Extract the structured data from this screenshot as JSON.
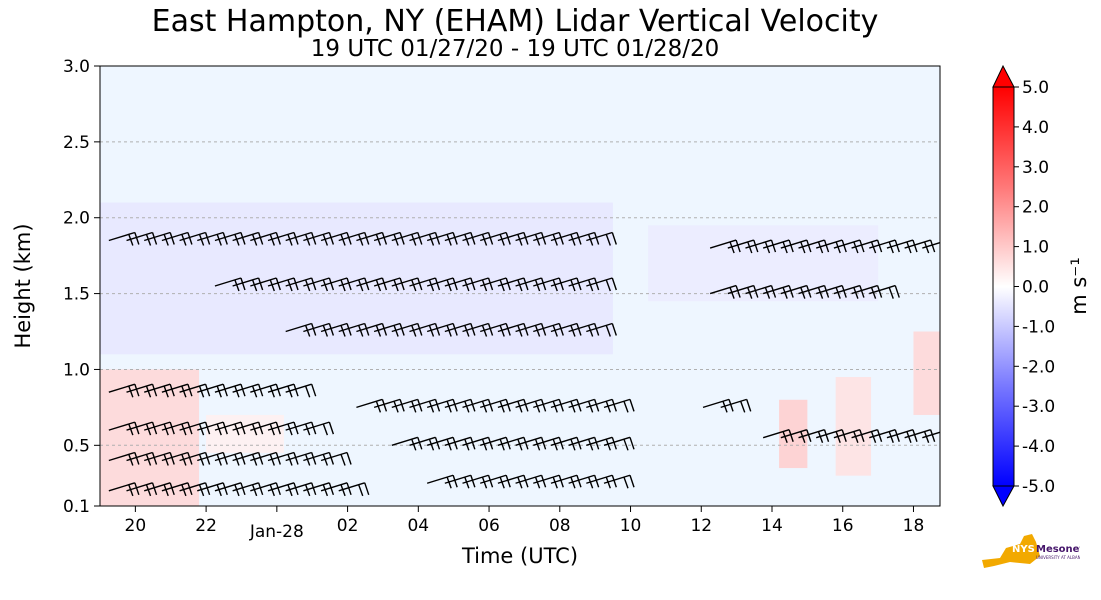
{
  "chart_data": {
    "type": "heatmap",
    "title": "East Hampton, NY (EHAM) Lidar Vertical Velocity",
    "subtitle": "19 UTC 01/27/20 - 19 UTC 01/28/20",
    "xlabel": "Time (UTC)",
    "ylabel": "Height (km)",
    "x_ticks": [
      "20",
      "22",
      "Jan-28",
      "02",
      "04",
      "06",
      "08",
      "10",
      "12",
      "14",
      "16",
      "18"
    ],
    "x_tick_hours": [
      20,
      22,
      24,
      26,
      28,
      30,
      32,
      34,
      36,
      38,
      40,
      42
    ],
    "xlim": [
      19,
      42.75
    ],
    "y_ticks": [
      0.1,
      0.5,
      1.0,
      1.5,
      2.0,
      2.5,
      3.0
    ],
    "y_tick_labels": [
      "0.1",
      "0.5",
      "1.0",
      "1.5",
      "2.0",
      "2.5",
      "3.0"
    ],
    "ylim": [
      0.1,
      3.0
    ],
    "grid": "horizontal dashed at 0.5 km intervals",
    "colorbar": {
      "label": "m s⁻¹",
      "range": [
        -5.0,
        5.0
      ],
      "tick_labels": [
        "5.0",
        "4.0",
        "3.0",
        "2.0",
        "1.0",
        "0.0",
        "-1.0",
        "-2.0",
        "-3.0",
        "-4.0",
        "-5.0"
      ],
      "colors": {
        "min": "#0000ff",
        "mid": "#ffffff",
        "max": "#ff0000"
      }
    },
    "velocity_regions": [
      {
        "t0": 19.0,
        "t1": 21.8,
        "h0": 0.1,
        "h1": 1.0,
        "value": 0.8
      },
      {
        "t0": 22.0,
        "t1": 24.2,
        "h0": 0.45,
        "h1": 0.7,
        "value": 0.3
      },
      {
        "t0": 19.0,
        "t1": 33.5,
        "h0": 1.1,
        "h1": 2.1,
        "value": -0.5
      },
      {
        "t0": 34.5,
        "t1": 41.0,
        "h0": 1.45,
        "h1": 1.95,
        "value": -0.4
      },
      {
        "t0": 38.2,
        "t1": 39.0,
        "h0": 0.35,
        "h1": 0.8,
        "value": 1.0
      },
      {
        "t0": 39.8,
        "t1": 40.8,
        "h0": 0.3,
        "h1": 0.95,
        "value": 0.6
      },
      {
        "t0": 42.0,
        "t1": 42.75,
        "h0": 0.7,
        "h1": 1.25,
        "value": 0.8
      }
    ],
    "wind_barb_rows": [
      {
        "t0": 19.0,
        "t1": 24.7,
        "h": 0.85
      },
      {
        "t0": 19.0,
        "t1": 25.2,
        "h": 0.6
      },
      {
        "t0": 19.0,
        "t1": 25.5,
        "h": 0.4
      },
      {
        "t0": 19.0,
        "t1": 26.0,
        "h": 0.2
      },
      {
        "t0": 19.0,
        "t1": 33.0,
        "h": 1.85
      },
      {
        "t0": 22.0,
        "t1": 33.0,
        "h": 1.55
      },
      {
        "t0": 24.0,
        "t1": 33.0,
        "h": 1.25
      },
      {
        "t0": 26.0,
        "t1": 33.5,
        "h": 0.75
      },
      {
        "t0": 27.0,
        "t1": 33.5,
        "h": 0.5
      },
      {
        "t0": 28.0,
        "t1": 33.5,
        "h": 0.25
      },
      {
        "t0": 36.0,
        "t1": 42.5,
        "h": 1.8
      },
      {
        "t0": 36.0,
        "t1": 41.0,
        "h": 1.5
      },
      {
        "t0": 35.8,
        "t1": 37.0,
        "h": 0.75
      },
      {
        "t0": 37.5,
        "t1": 42.5,
        "h": 0.55
      }
    ]
  }
}
